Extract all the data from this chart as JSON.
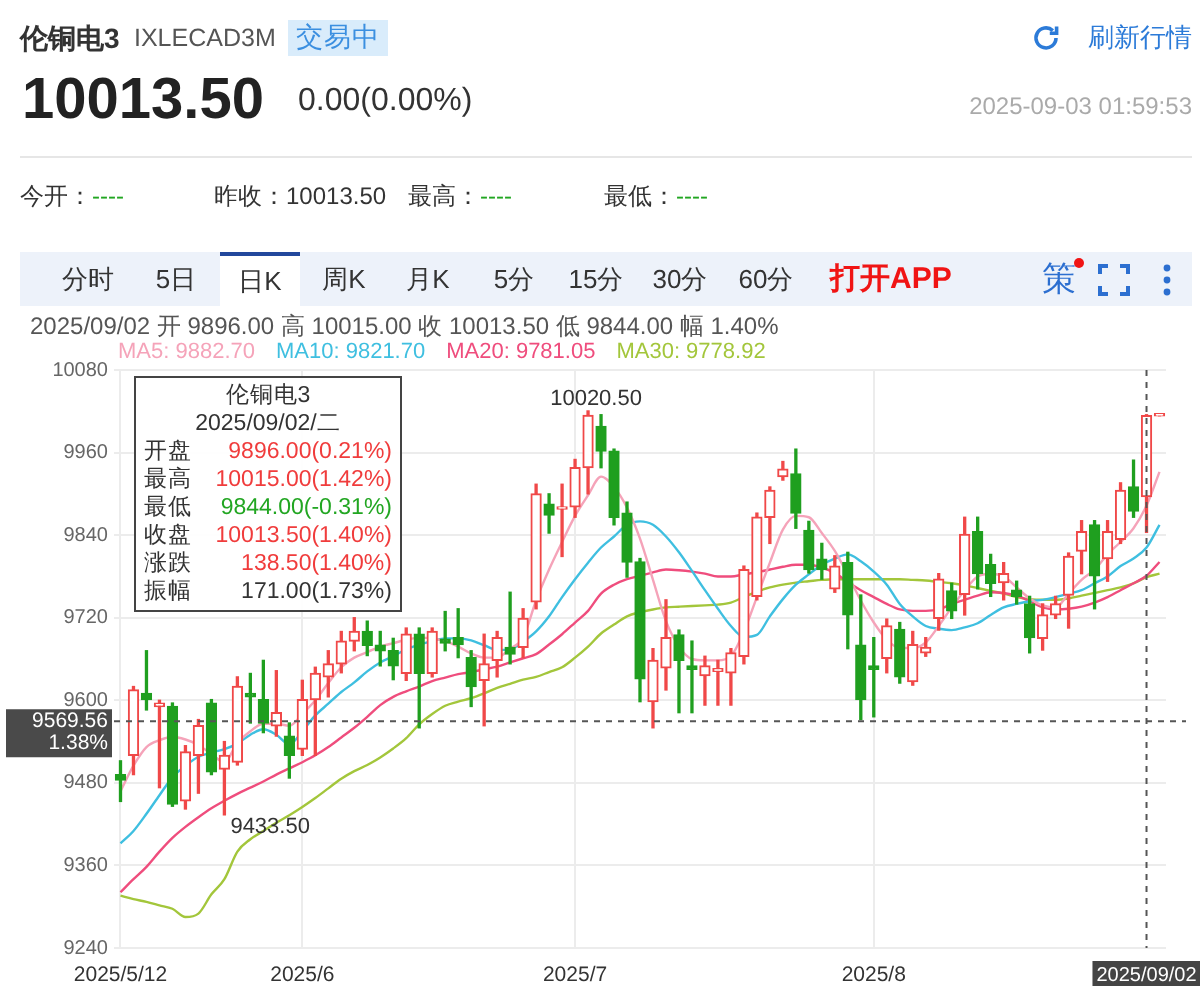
{
  "chart_data": {
    "type": "candlestick",
    "title": "伦铜电3",
    "subtitle": "IXLECAD3M",
    "annotations": [
      "交易中",
      "刷新行情",
      "10013.50",
      "0.00(0.00%)",
      "2025-09-03 01:59:53",
      "今开：",
      "----",
      "昨收：10013.50",
      "最高：",
      "----",
      "最低：",
      "----",
      "分时",
      "5日",
      "日K",
      "周K",
      "月K",
      "5分",
      "15分",
      "30分",
      "60分",
      "打开APP",
      "策",
      "2025/09/02 开 9896.00 高 10015.00 收 10013.50 低 9844.00 幅 1.40%",
      "伦铜电3",
      "2025/09/02/二",
      "开盘",
      "9896.00(0.21%)",
      "最高",
      "10015.00(1.42%)",
      "最低",
      "9844.00(-0.31%)",
      "收盘",
      "10013.50(1.40%)",
      "涨跌",
      "138.50(1.40%)",
      "振幅",
      "171.00(1.73%)",
      {
        "text": "10020.50",
        "y": 10020.5
      },
      {
        "text": "9433.50",
        "y": 9433.5
      }
    ],
    "categories": [
      "2025/5/12",
      null,
      null,
      null,
      null,
      null,
      null,
      null,
      null,
      null,
      null,
      null,
      null,
      null,
      "2025/6",
      null,
      null,
      null,
      null,
      null,
      null,
      null,
      null,
      null,
      null,
      null,
      null,
      null,
      null,
      null,
      null,
      null,
      null,
      null,
      null,
      "2025/7",
      null,
      null,
      null,
      null,
      null,
      null,
      null,
      null,
      null,
      null,
      null,
      null,
      null,
      null,
      null,
      null,
      null,
      null,
      null,
      null,
      null,
      null,
      "2025/8",
      null,
      null,
      null,
      null,
      null,
      null,
      null,
      null,
      null,
      null,
      null,
      null,
      null,
      null,
      null,
      null,
      null,
      null,
      null,
      null,
      "2025/09/02",
      null
    ],
    "ohlc": [
      [
        9492,
        9512,
        9453,
        9484
      ],
      [
        9520,
        9620,
        9492,
        9615
      ],
      [
        9610,
        9672,
        9586,
        9601
      ],
      [
        9591,
        9600,
        9473,
        9596
      ],
      [
        9591,
        9596,
        9446,
        9449
      ],
      [
        9454,
        9534,
        9442,
        9525
      ],
      [
        9520,
        9572,
        9465,
        9563
      ],
      [
        9596,
        9601,
        9492,
        9496
      ],
      [
        9500,
        9540,
        9433.5,
        9520
      ],
      [
        9510,
        9634,
        9506,
        9620
      ],
      [
        9610,
        9639,
        9567,
        9605
      ],
      [
        9601,
        9658,
        9553,
        9567
      ],
      [
        9563,
        9643,
        9548,
        9582
      ],
      [
        9548,
        9567,
        9487,
        9520
      ],
      [
        9529,
        9629,
        9520,
        9601
      ],
      [
        9601,
        9648,
        9520,
        9639
      ],
      [
        9634,
        9672,
        9605,
        9653
      ],
      [
        9653,
        9700,
        9640,
        9686
      ],
      [
        9686,
        9720,
        9672,
        9700
      ],
      [
        9700,
        9715,
        9665,
        9680
      ],
      [
        9680,
        9700,
        9650,
        9672
      ],
      [
        9672,
        9690,
        9630,
        9650
      ],
      [
        9639,
        9705,
        9629,
        9696
      ],
      [
        9696,
        9705,
        9560,
        9639
      ],
      [
        9639,
        9705,
        9634,
        9700
      ],
      [
        9689,
        9729,
        9672,
        9683
      ],
      [
        9691,
        9733,
        9662,
        9681
      ],
      [
        9662,
        9672,
        9591,
        9620
      ],
      [
        9629,
        9696,
        9563,
        9653
      ],
      [
        9658,
        9700,
        9634,
        9691
      ],
      [
        9677,
        9757,
        9653,
        9667
      ],
      [
        9677,
        9733,
        9662,
        9719
      ],
      [
        9743,
        9914,
        9733,
        9900
      ],
      [
        9885,
        9900,
        9843,
        9869
      ],
      [
        9878,
        9914,
        9809,
        9881
      ],
      [
        9881,
        9950,
        9866,
        9938
      ],
      [
        9938,
        10020.5,
        9900,
        10014
      ],
      [
        9998,
        10015,
        9938,
        9962
      ],
      [
        9962,
        9965,
        9855,
        9866
      ],
      [
        9872,
        9888,
        9779,
        9801
      ],
      [
        9801,
        9806,
        9598,
        9631
      ],
      [
        9598,
        9675,
        9560,
        9658
      ],
      [
        9647,
        9746,
        9615,
        9691
      ],
      [
        9695,
        9702,
        9582,
        9658
      ],
      [
        9650,
        9686,
        9582,
        9645
      ],
      [
        9636,
        9664,
        9593,
        9650
      ],
      [
        9642,
        9658,
        9593,
        9646
      ],
      [
        9640,
        9675,
        9593,
        9669
      ],
      [
        9664,
        9795,
        9653,
        9790
      ],
      [
        9751,
        9872,
        9746,
        9866
      ],
      [
        9866,
        9910,
        9828,
        9905
      ],
      [
        9925,
        9947,
        9920,
        9936
      ],
      [
        9929,
        9965,
        9850,
        9872
      ],
      [
        9847,
        9860,
        9785,
        9790
      ],
      [
        9805,
        9828,
        9776,
        9790
      ],
      [
        9762,
        9810,
        9757,
        9795
      ],
      [
        9800,
        9815,
        9675,
        9724
      ],
      [
        9680,
        9753,
        9572,
        9601
      ],
      [
        9650,
        9691,
        9576,
        9645
      ],
      [
        9661,
        9718,
        9640,
        9708
      ],
      [
        9703,
        9713,
        9625,
        9634
      ],
      [
        9627,
        9700,
        9622,
        9681
      ],
      [
        9669,
        9691,
        9664,
        9677
      ],
      [
        9719,
        9784,
        9702,
        9776
      ],
      [
        9759,
        9770,
        9719,
        9730
      ],
      [
        9754,
        9866,
        9724,
        9841
      ],
      [
        9845,
        9866,
        9762,
        9784
      ],
      [
        9797,
        9812,
        9751,
        9770
      ],
      [
        9771,
        9800,
        9746,
        9784
      ],
      [
        9760,
        9773,
        9740,
        9751
      ],
      [
        9740,
        9751,
        9669,
        9691
      ],
      [
        9690,
        9740,
        9673,
        9724
      ],
      [
        9724,
        9751,
        9719,
        9740
      ],
      [
        9753,
        9814,
        9705,
        9809
      ],
      [
        9817,
        9861,
        9784,
        9845
      ],
      [
        9855,
        9861,
        9733,
        9781
      ],
      [
        9806,
        9861,
        9773,
        9845
      ],
      [
        9834,
        9916,
        9828,
        9905
      ],
      [
        9910,
        9949,
        9866,
        9875
      ],
      [
        9896,
        10015,
        9844,
        10013.5
      ],
      [
        10013.5,
        10013.5,
        10013.5,
        10013.5
      ]
    ],
    "colors": [
      "#1f9f1f",
      "#f04848",
      "#1f9f1f",
      "#f04848",
      "#1f9f1f",
      "#f04848",
      "#f04848",
      "#1f9f1f",
      "#f04848",
      "#f04848",
      "#1f9f1f",
      "#1f9f1f",
      "#f04848",
      "#1f9f1f",
      "#f04848",
      "#f04848",
      "#f04848",
      "#f04848",
      "#f04848",
      "#1f9f1f",
      "#1f9f1f",
      "#1f9f1f",
      "#f04848",
      "#1f9f1f",
      "#f04848",
      "#1f9f1f",
      "#1f9f1f",
      "#1f9f1f",
      "#f04848",
      "#f04848",
      "#1f9f1f",
      "#f04848",
      "#f04848",
      "#1f9f1f",
      "#f04848",
      "#f04848",
      "#f04848",
      "#1f9f1f",
      "#1f9f1f",
      "#1f9f1f",
      "#1f9f1f",
      "#f04848",
      "#f04848",
      "#1f9f1f",
      "#1f9f1f",
      "#f04848",
      "#f04848",
      "#f04848",
      "#f04848",
      "#f04848",
      "#f04848",
      "#f04848",
      "#1f9f1f",
      "#1f9f1f",
      "#1f9f1f",
      "#f04848",
      "#1f9f1f",
      "#1f9f1f",
      "#1f9f1f",
      "#f04848",
      "#1f9f1f",
      "#f04848",
      "#f04848",
      "#f04848",
      "#1f9f1f",
      "#f04848",
      "#1f9f1f",
      "#1f9f1f",
      "#f04848",
      "#1f9f1f",
      "#1f9f1f",
      "#f04848",
      "#f04848",
      "#f04848",
      "#f04848",
      "#1f9f1f",
      "#f04848",
      "#f04848",
      "#1f9f1f",
      "#f04848",
      "#f04848"
    ],
    "series": [
      {
        "type": "line",
        "name": "MA5: 9882.70",
        "color": "#f5a3b9",
        "values": [
          9468,
          9505,
          9532,
          9542,
          9547,
          9543,
          9535,
          9522,
          9510,
          9538,
          9555,
          9566,
          9566,
          9563,
          9580,
          9600,
          9625,
          9648,
          9662,
          9670,
          9678,
          9683,
          9688,
          9691,
          9690,
          9686,
          9678,
          9668,
          9662,
          9662,
          9675,
          9691,
          9745,
          9790,
          9830,
          9868,
          9898,
          9925,
          9910,
          9880,
          9835,
          9775,
          9715,
          9678,
          9660,
          9658,
          9658,
          9664,
          9700,
          9750,
          9800,
          9848,
          9868,
          9866,
          9843,
          9817,
          9782,
          9745,
          9713,
          9688,
          9676,
          9676,
          9684,
          9708,
          9735,
          9760,
          9780,
          9784,
          9780,
          9764,
          9748,
          9738,
          9735,
          9755,
          9775,
          9790,
          9812,
          9830,
          9850,
          9883,
          9932
        ]
      },
      {
        "type": "line",
        "name": "MA10: 9821.70",
        "color": "#3fbfe0",
        "values": [
          9392,
          9410,
          9435,
          9462,
          9488,
          9505,
          9518,
          9524,
          9529,
          9537,
          9550,
          9558,
          9550,
          9536,
          9555,
          9578,
          9595,
          9612,
          9626,
          9642,
          9655,
          9664,
          9674,
          9681,
          9686,
          9690,
          9690,
          9687,
          9680,
          9673,
          9674,
          9685,
          9700,
          9722,
          9750,
          9776,
          9800,
          9822,
          9838,
          9855,
          9860,
          9855,
          9838,
          9815,
          9788,
          9760,
          9733,
          9708,
          9692,
          9695,
          9722,
          9747,
          9768,
          9783,
          9797,
          9806,
          9812,
          9802,
          9787,
          9768,
          9740,
          9722,
          9708,
          9704,
          9702,
          9706,
          9712,
          9724,
          9735,
          9740,
          9744,
          9746,
          9750,
          9755,
          9760,
          9770,
          9780,
          9795,
          9806,
          9822,
          9855
        ]
      },
      {
        "type": "line",
        "name": "MA20: 9781.05",
        "color": "#ef4d7d",
        "values": [
          9321,
          9340,
          9358,
          9380,
          9400,
          9416,
          9430,
          9443,
          9454,
          9464,
          9473,
          9482,
          9492,
          9501,
          9510,
          9520,
          9532,
          9546,
          9560,
          9576,
          9593,
          9605,
          9613,
          9620,
          9628,
          9633,
          9638,
          9641,
          9645,
          9649,
          9655,
          9661,
          9667,
          9681,
          9696,
          9713,
          9730,
          9755,
          9768,
          9776,
          9781,
          9786,
          9790,
          9789,
          9787,
          9784,
          9780,
          9780,
          9783,
          9786,
          9790,
          9794,
          9797,
          9797,
          9793,
          9785,
          9772,
          9760,
          9750,
          9740,
          9732,
          9730,
          9730,
          9732,
          9740,
          9746,
          9752,
          9757,
          9756,
          9752,
          9744,
          9735,
          9732,
          9733,
          9736,
          9742,
          9750,
          9760,
          9770,
          9781,
          9801
        ]
      },
      {
        "type": "line",
        "name": "MA30: 9778.92",
        "color": "#a3c63b",
        "values": [
          9316,
          9311,
          9307,
          9302,
          9297,
          9285,
          9290,
          9318,
          9340,
          9380,
          9398,
          9410,
          9422,
          9433,
          9445,
          9458,
          9472,
          9486,
          9497,
          9506,
          9517,
          9530,
          9545,
          9565,
          9580,
          9592,
          9598,
          9603,
          9610,
          9618,
          9624,
          9630,
          9634,
          9641,
          9648,
          9662,
          9678,
          9697,
          9710,
          9722,
          9728,
          9732,
          9735,
          9736,
          9737,
          9738,
          9739,
          9742,
          9750,
          9758,
          9764,
          9768,
          9771,
          9773,
          9775,
          9776,
          9776,
          9776,
          9776,
          9776,
          9776,
          9775,
          9774,
          9772,
          9770,
          9767,
          9763,
          9759,
          9755,
          9750,
          9747,
          9746,
          9746,
          9748,
          9752,
          9756,
          9760,
          9764,
          9770,
          9779,
          9784
        ]
      }
    ],
    "ylim": [
      9240,
      10080
    ],
    "yticks": [
      9240,
      9360,
      9480,
      9600,
      9720,
      9840,
      9960,
      10080
    ],
    "grid": true,
    "legend": "top left",
    "ref_lines": [
      {
        "axis": "y",
        "value": 9569.56,
        "label": "9569.56 1.38%"
      },
      {
        "axis": "x",
        "value": "2025/09/02"
      }
    ]
  }
}
